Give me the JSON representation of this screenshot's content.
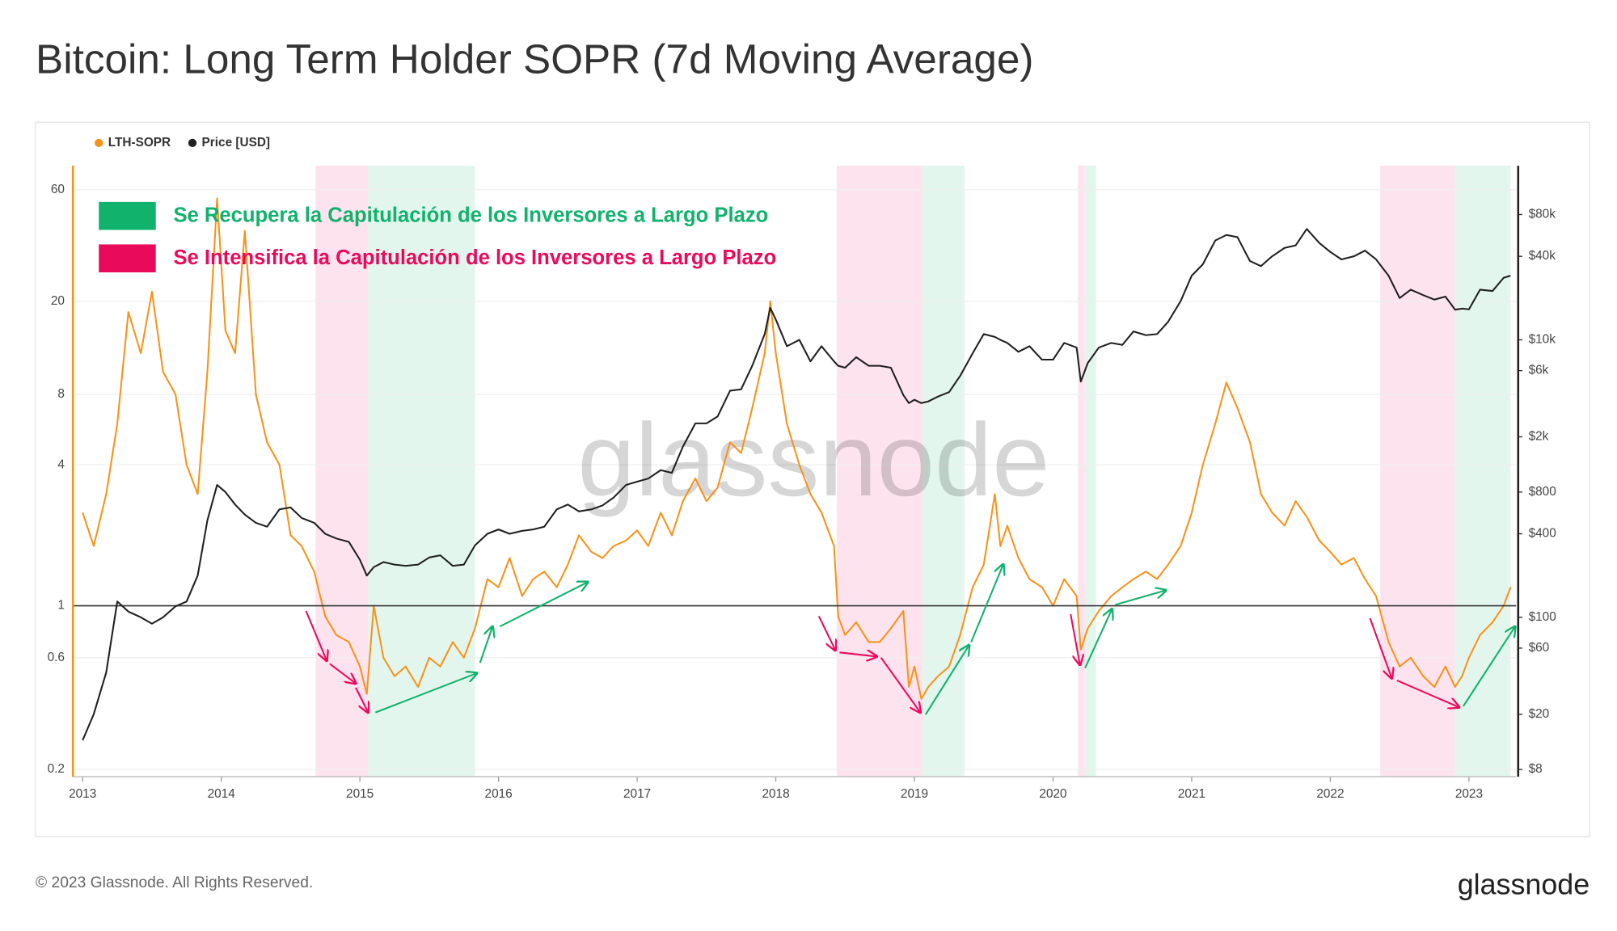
{
  "chart_data": {
    "type": "line",
    "title": "Bitcoin: Long Term Holder SOPR (7d Moving Average)",
    "watermark": "glassnode",
    "footer": "© 2023 Glassnode. All Rights Reserved.",
    "brand": "glassnode",
    "annotations": [
      {
        "text": "Se Recupera la Capitulación de los Inversores a Largo Plazo",
        "color": "#10b26c"
      },
      {
        "text": "Se Intensifica la Capitulación de los Inversores a Largo Plazo",
        "color": "#ea0a5c"
      }
    ],
    "regions": [
      {
        "start": 2014.68,
        "end": 2015.06,
        "color": "#fde3ee"
      },
      {
        "start": 2015.06,
        "end": 2015.83,
        "color": "#e2f6ee"
      },
      {
        "start": 2018.44,
        "end": 2019.06,
        "color": "#fde3ee"
      },
      {
        "start": 2019.06,
        "end": 2019.36,
        "color": "#e2f6ee"
      },
      {
        "start": 2020.18,
        "end": 2020.23,
        "color": "#fde3ee"
      },
      {
        "start": 2020.23,
        "end": 2020.31,
        "color": "#e2f6ee"
      },
      {
        "start": 2022.36,
        "end": 2022.9,
        "color": "#fde3ee"
      },
      {
        "start": 2022.9,
        "end": 2023.3,
        "color": "#e2f6ee"
      }
    ],
    "x": [
      2013.0,
      2013.08,
      2013.17,
      2013.25,
      2013.33,
      2013.42,
      2013.5,
      2013.58,
      2013.67,
      2013.75,
      2013.83,
      2013.9,
      2013.97,
      2014.03,
      2014.1,
      2014.17,
      2014.25,
      2014.33,
      2014.42,
      2014.5,
      2014.58,
      2014.67,
      2014.75,
      2014.83,
      2014.92,
      2015.0,
      2015.05,
      2015.1,
      2015.17,
      2015.25,
      2015.33,
      2015.42,
      2015.5,
      2015.58,
      2015.67,
      2015.75,
      2015.83,
      2015.92,
      2016.0,
      2016.08,
      2016.17,
      2016.25,
      2016.33,
      2016.42,
      2016.5,
      2016.58,
      2016.67,
      2016.75,
      2016.83,
      2016.92,
      2017.0,
      2017.08,
      2017.17,
      2017.25,
      2017.33,
      2017.42,
      2017.5,
      2017.58,
      2017.67,
      2017.75,
      2017.83,
      2017.92,
      2017.96,
      2018.0,
      2018.08,
      2018.17,
      2018.25,
      2018.33,
      2018.42,
      2018.45,
      2018.5,
      2018.58,
      2018.67,
      2018.75,
      2018.83,
      2018.92,
      2018.96,
      2019.0,
      2019.05,
      2019.1,
      2019.17,
      2019.25,
      2019.33,
      2019.42,
      2019.5,
      2019.58,
      2019.62,
      2019.67,
      2019.75,
      2019.83,
      2019.92,
      2020.0,
      2020.08,
      2020.17,
      2020.2,
      2020.25,
      2020.33,
      2020.42,
      2020.5,
      2020.58,
      2020.67,
      2020.75,
      2020.83,
      2020.92,
      2021.0,
      2021.08,
      2021.17,
      2021.25,
      2021.33,
      2021.42,
      2021.5,
      2021.58,
      2021.67,
      2021.75,
      2021.83,
      2021.92,
      2022.0,
      2022.08,
      2022.17,
      2022.25,
      2022.33,
      2022.42,
      2022.5,
      2022.58,
      2022.67,
      2022.75,
      2022.83,
      2022.9,
      2022.95,
      2023.0,
      2023.08,
      2023.17,
      2023.25,
      2023.3
    ],
    "series": [
      {
        "name": "LTH-SOPR",
        "color": "#f7931a",
        "axis": "y",
        "values": [
          2.5,
          1.8,
          3,
          6,
          18,
          12,
          22,
          10,
          8,
          4,
          3,
          10,
          55,
          15,
          12,
          40,
          8,
          5,
          4,
          2,
          1.8,
          1.4,
          0.9,
          0.75,
          0.7,
          0.55,
          0.42,
          1.0,
          0.6,
          0.5,
          0.55,
          0.45,
          0.6,
          0.55,
          0.7,
          0.6,
          0.8,
          1.3,
          1.2,
          1.6,
          1.1,
          1.3,
          1.4,
          1.2,
          1.5,
          2.0,
          1.7,
          1.6,
          1.8,
          1.9,
          2.1,
          1.8,
          2.5,
          2.0,
          2.8,
          3.5,
          2.8,
          3.2,
          5,
          4.5,
          7,
          12,
          20,
          12,
          6,
          4,
          3,
          2.5,
          1.8,
          0.9,
          0.75,
          0.85,
          0.7,
          0.7,
          0.8,
          0.95,
          0.45,
          0.55,
          0.4,
          0.45,
          0.5,
          0.55,
          0.75,
          1.2,
          1.5,
          3.0,
          1.8,
          2.2,
          1.6,
          1.3,
          1.2,
          1.0,
          1.3,
          1.1,
          0.65,
          0.8,
          0.95,
          1.1,
          1.2,
          1.3,
          1.4,
          1.3,
          1.5,
          1.8,
          2.5,
          4,
          6,
          9,
          7,
          5,
          3,
          2.5,
          2.2,
          2.8,
          2.4,
          1.9,
          1.7,
          1.5,
          1.6,
          1.3,
          1.1,
          0.7,
          0.55,
          0.6,
          0.5,
          0.45,
          0.55,
          0.45,
          0.5,
          0.6,
          0.75,
          0.85,
          1.0,
          1.2
        ]
      },
      {
        "name": "Price [USD]",
        "color": "#1f1f1f",
        "axis": "y2",
        "values": [
          13,
          20,
          40,
          130,
          110,
          100,
          90,
          100,
          120,
          130,
          200,
          500,
          900,
          800,
          650,
          550,
          480,
          450,
          600,
          620,
          520,
          480,
          400,
          370,
          350,
          260,
          200,
          230,
          250,
          240,
          235,
          240,
          270,
          280,
          235,
          240,
          330,
          400,
          430,
          400,
          420,
          430,
          450,
          600,
          650,
          580,
          600,
          640,
          730,
          900,
          950,
          1000,
          1150,
          1100,
          1700,
          2500,
          2500,
          2800,
          4300,
          4400,
          6500,
          11000,
          17000,
          14000,
          9000,
          10000,
          7000,
          9000,
          7000,
          6500,
          6300,
          7500,
          6500,
          6500,
          6300,
          4000,
          3500,
          3700,
          3500,
          3600,
          3900,
          4200,
          5500,
          8000,
          11000,
          10500,
          10000,
          9500,
          8200,
          9000,
          7200,
          7200,
          9500,
          8800,
          5000,
          6800,
          8800,
          9500,
          9200,
          11500,
          10800,
          11000,
          13500,
          19000,
          29000,
          35000,
          52000,
          57000,
          55000,
          37000,
          34000,
          40000,
          46000,
          48000,
          63000,
          50000,
          43000,
          38000,
          40000,
          44000,
          38000,
          29000,
          20000,
          23000,
          21000,
          19500,
          20500,
          16500,
          16800,
          16600,
          23000,
          22500,
          28000,
          29000
        ]
      }
    ],
    "hline": 1,
    "xlim": [
      2012.93,
      2023.34
    ],
    "xticks": [
      2013,
      2014,
      2015,
      2016,
      2017,
      2018,
      2019,
      2020,
      2021,
      2022,
      2023
    ],
    "ylim": [
      0.186,
      76
    ],
    "yticks": [
      0.2,
      0.6,
      1,
      4,
      8,
      20,
      60
    ],
    "ylog": true,
    "y2lim": [
      7.1,
      180000
    ],
    "y2ticks": [
      {
        "value": 8,
        "label": "$8"
      },
      {
        "value": 20,
        "label": "$20"
      },
      {
        "value": 60,
        "label": "$60"
      },
      {
        "value": 100,
        "label": "$100"
      },
      {
        "value": 400,
        "label": "$400"
      },
      {
        "value": 800,
        "label": "$800"
      },
      {
        "value": 2000,
        "label": "$2k"
      },
      {
        "value": 6000,
        "label": "$6k"
      },
      {
        "value": 10000,
        "label": "$10k"
      },
      {
        "value": 40000,
        "label": "$40k"
      },
      {
        "value": 80000,
        "label": "$80k"
      }
    ],
    "y2log": true,
    "grid": true
  }
}
